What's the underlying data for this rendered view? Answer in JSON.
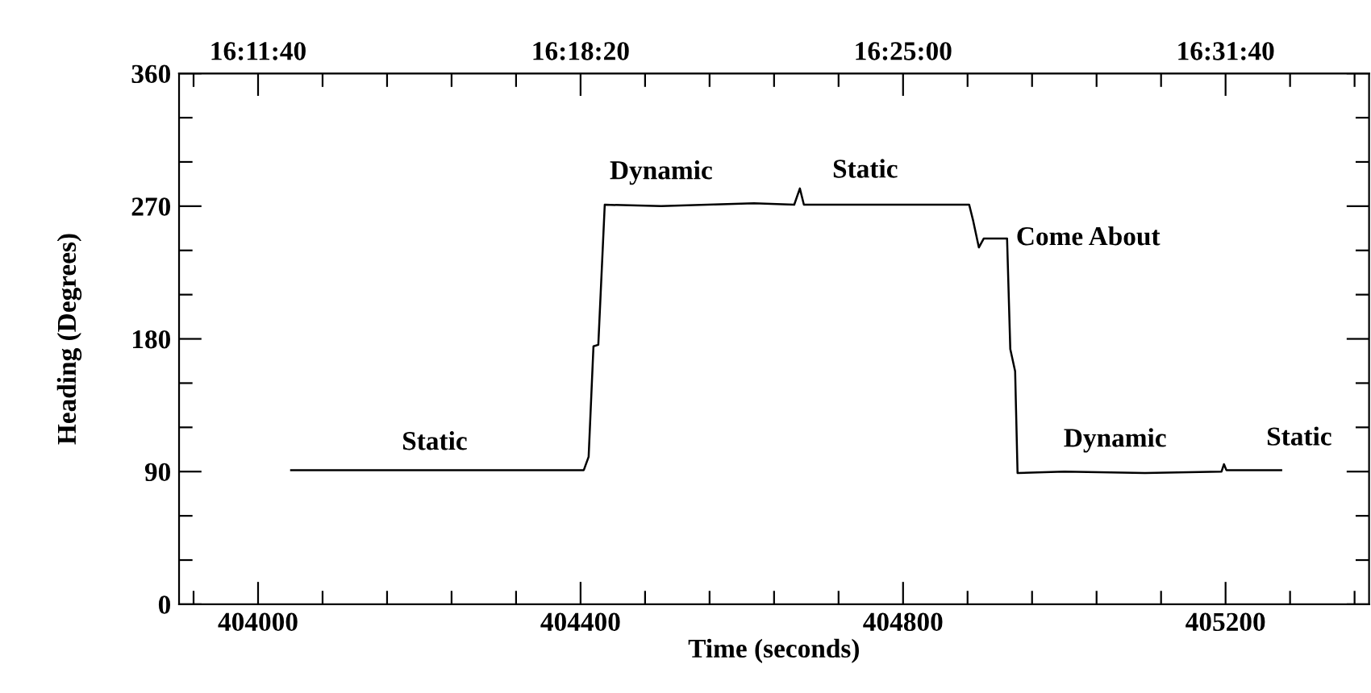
{
  "chart_data": {
    "type": "line",
    "xlabel": "Time (seconds)",
    "ylabel": "Heading (Degrees)",
    "series": [
      {
        "color": "#000000",
        "x": [
          404041,
          404150,
          404300,
          404404,
          404410,
          404416,
          404422,
          404430,
          404500,
          404615,
          404665,
          404672,
          404677,
          404780,
          404882,
          404887,
          404894,
          404900,
          404929,
          404933,
          404939,
          404942,
          405000,
          405100,
          405195,
          405198,
          405201,
          405269
        ],
        "values": [
          91,
          91,
          91,
          91,
          100,
          175,
          176,
          271,
          270,
          272,
          271,
          282,
          271,
          271,
          271,
          260,
          242,
          248,
          248,
          173,
          158,
          89,
          90,
          89,
          90,
          95,
          91,
          91
        ]
      }
    ],
    "xlim": [
      403902,
      405378
    ],
    "ylim": [
      0,
      360
    ],
    "xticks": [
      {
        "value": 403920,
        "label": null
      },
      404000,
      {
        "value": 404080,
        "label": null
      },
      {
        "value": 404160,
        "label": null
      },
      {
        "value": 404240,
        "label": null
      },
      {
        "value": 404320,
        "label": null
      },
      404400,
      {
        "value": 404480,
        "label": null
      },
      {
        "value": 404560,
        "label": null
      },
      {
        "value": 404640,
        "label": null
      },
      {
        "value": 404720,
        "label": null
      },
      404800,
      {
        "value": 404880,
        "label": null
      },
      {
        "value": 404960,
        "label": null
      },
      {
        "value": 405040,
        "label": null
      },
      {
        "value": 405120,
        "label": null
      },
      405200,
      {
        "value": 405280,
        "label": null
      },
      {
        "value": 405360,
        "label": null
      }
    ],
    "x2lim": [
      16.16722,
      16.57722
    ],
    "x2ticks": [
      {
        "value": 16.172222,
        "label": null
      },
      {
        "value": 16.194444,
        "label": "16:11:40"
      },
      {
        "value": 16.216667,
        "label": null
      },
      {
        "value": 16.238889,
        "label": null
      },
      {
        "value": 16.261111,
        "label": null
      },
      {
        "value": 16.283333,
        "label": null
      },
      {
        "value": 16.305556,
        "label": "16:18:20"
      },
      {
        "value": 16.327778,
        "label": null
      },
      {
        "value": 16.35,
        "label": null
      },
      {
        "value": 16.372222,
        "label": null
      },
      {
        "value": 16.394444,
        "label": null
      },
      {
        "value": 16.416667,
        "label": "16:25:00"
      },
      {
        "value": 16.438889,
        "label": null
      },
      {
        "value": 16.461111,
        "label": null
      },
      {
        "value": 16.483333,
        "label": null
      },
      {
        "value": 16.505556,
        "label": null
      },
      {
        "value": 16.527778,
        "label": "16:31:40"
      },
      {
        "value": 16.55,
        "label": null
      },
      {
        "value": 16.572222,
        "label": null
      }
    ],
    "yticks": [
      0,
      {
        "value": 30,
        "label": null
      },
      {
        "value": 60,
        "label": null
      },
      90,
      {
        "value": 120,
        "label": null
      },
      {
        "value": 150,
        "label": null
      },
      180,
      {
        "value": 210,
        "label": null
      },
      {
        "value": 240,
        "label": null
      },
      270,
      {
        "value": 300,
        "label": null
      },
      {
        "value": 330,
        "label": null
      },
      360
    ],
    "annotations": [
      {
        "text": "Static",
        "x": 404219,
        "y": 91
      },
      {
        "text": "Dynamic",
        "x": 404500,
        "y": 270
      },
      {
        "text": "Static",
        "x": 404753,
        "y": 271
      },
      {
        "text": "Come About",
        "x": 404929,
        "y": 248
      },
      {
        "text": "Dynamic",
        "x": 405063,
        "y": 90
      },
      {
        "text": "Static",
        "x": 405269,
        "y": 91
      }
    ],
    "grid": false,
    "legend": false,
    "marker": "none",
    "line_style": "solid"
  }
}
